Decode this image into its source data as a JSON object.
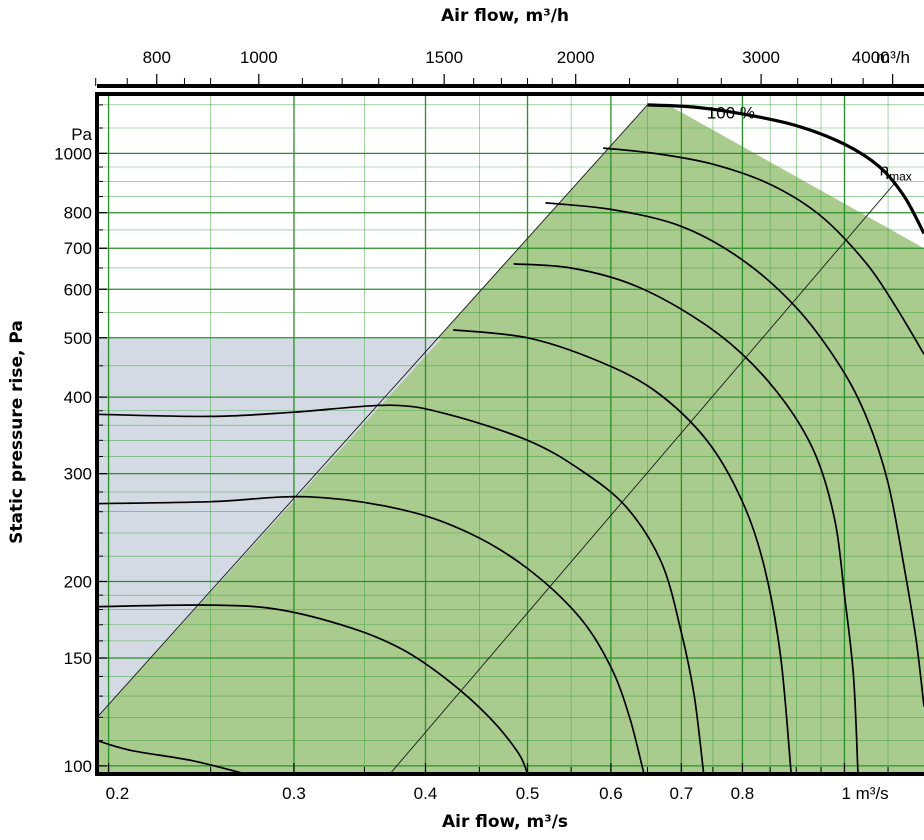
{
  "chart_data": {
    "type": "line",
    "x_axis_bottom": {
      "label": "Air flow, m³/s",
      "scale": "log",
      "range": [
        0.195,
        1.19
      ],
      "ticks": [
        {
          "value": 0.2,
          "label": "0.2"
        },
        {
          "value": 0.3,
          "label": "0.3"
        },
        {
          "value": 0.4,
          "label": "0.4"
        },
        {
          "value": 0.5,
          "label": "0.5"
        },
        {
          "value": 0.6,
          "label": "0.6"
        },
        {
          "value": 0.7,
          "label": "0.7"
        },
        {
          "value": 0.8,
          "label": "0.8"
        },
        {
          "value": 1.0,
          "label": "1 m³/s"
        }
      ]
    },
    "x_axis_top": {
      "label": "Air flow, m³/h",
      "scale": "log",
      "ticks": [
        {
          "value": 800,
          "label": "800"
        },
        {
          "value": 1000,
          "label": "1000"
        },
        {
          "value": 1500,
          "label": "1500"
        },
        {
          "value": 2000,
          "label": "2000"
        },
        {
          "value": 3000,
          "label": "3000"
        },
        {
          "value": 4000,
          "label": "4000"
        }
      ],
      "unit_label": "m³/h"
    },
    "y_axis": {
      "label": "Static pressure rise, Pa",
      "unit_label": "Pa",
      "scale": "log",
      "range": [
        97,
        1250
      ],
      "ticks": [
        {
          "value": 100,
          "label": "100"
        },
        {
          "value": 150,
          "label": "150"
        },
        {
          "value": 200,
          "label": "200"
        },
        {
          "value": 300,
          "label": "300"
        },
        {
          "value": 400,
          "label": "400"
        },
        {
          "value": 500,
          "label": "500"
        },
        {
          "value": 600,
          "label": "600"
        },
        {
          "value": 700,
          "label": "700"
        },
        {
          "value": 800,
          "label": "800"
        },
        {
          "value": 1000,
          "label": "1000"
        }
      ]
    },
    "grid": true,
    "regions": [
      {
        "kind": "operating-area",
        "color": "#a9cc8e",
        "boundary": [
          [
            0.195,
            120
          ],
          [
            0.65,
            1200
          ],
          [
            0.68,
            1200
          ],
          [
            1.19,
            700
          ],
          [
            1.19,
            97
          ],
          [
            0.195,
            97
          ]
        ]
      },
      {
        "kind": "low-area",
        "color": "#d3dae3",
        "boundary": [
          [
            0.195,
            97
          ],
          [
            0.195,
            500
          ],
          [
            0.415,
            500
          ],
          [
            0.195,
            120
          ]
        ]
      }
    ],
    "series": [
      {
        "name": "100 %",
        "emphasis": "bold",
        "points": [
          [
            0.65,
            1200
          ],
          [
            0.72,
            1190
          ],
          [
            0.8,
            1160
          ],
          [
            0.9,
            1110
          ],
          [
            1.0,
            1035
          ],
          [
            1.08,
            950
          ],
          [
            1.14,
            850
          ],
          [
            1.19,
            740
          ]
        ]
      },
      {
        "points": [
          [
            0.59,
            1020
          ],
          [
            0.66,
            1000
          ],
          [
            0.75,
            960
          ],
          [
            0.85,
            890
          ],
          [
            0.95,
            790
          ],
          [
            1.05,
            660
          ],
          [
            1.12,
            560
          ],
          [
            1.19,
            470
          ]
        ]
      },
      {
        "points": [
          [
            0.52,
            830
          ],
          [
            0.6,
            810
          ],
          [
            0.7,
            760
          ],
          [
            0.8,
            670
          ],
          [
            0.9,
            560
          ],
          [
            0.99,
            450
          ],
          [
            1.05,
            370
          ],
          [
            1.1,
            290
          ],
          [
            1.14,
            210
          ],
          [
            1.17,
            160
          ],
          [
            1.19,
            125
          ]
        ]
      },
      {
        "points": [
          [
            0.485,
            660
          ],
          [
            0.55,
            650
          ],
          [
            0.63,
            610
          ],
          [
            0.72,
            540
          ],
          [
            0.8,
            470
          ],
          [
            0.88,
            390
          ],
          [
            0.94,
            320
          ],
          [
            0.98,
            250
          ],
          [
            1.0,
            190
          ],
          [
            1.02,
            140
          ],
          [
            1.03,
            97
          ]
        ]
      },
      {
        "points": [
          [
            0.425,
            515
          ],
          [
            0.5,
            500
          ],
          [
            0.58,
            460
          ],
          [
            0.66,
            410
          ],
          [
            0.74,
            340
          ],
          [
            0.8,
            270
          ],
          [
            0.84,
            210
          ],
          [
            0.87,
            150
          ],
          [
            0.89,
            97
          ]
        ]
      },
      {
        "points": [
          [
            0.195,
            375
          ],
          [
            0.25,
            372
          ],
          [
            0.3,
            378
          ],
          [
            0.37,
            388
          ],
          [
            0.42,
            375
          ],
          [
            0.5,
            340
          ],
          [
            0.56,
            305
          ],
          [
            0.62,
            265
          ],
          [
            0.67,
            215
          ],
          [
            0.7,
            165
          ],
          [
            0.72,
            130
          ],
          [
            0.735,
            97
          ]
        ]
      },
      {
        "points": [
          [
            0.195,
            268
          ],
          [
            0.25,
            270
          ],
          [
            0.31,
            275
          ],
          [
            0.38,
            262
          ],
          [
            0.44,
            240
          ],
          [
            0.5,
            210
          ],
          [
            0.56,
            175
          ],
          [
            0.6,
            145
          ],
          [
            0.625,
            120
          ],
          [
            0.645,
            97
          ]
        ]
      },
      {
        "points": [
          [
            0.195,
            182
          ],
          [
            0.25,
            183
          ],
          [
            0.29,
            180
          ],
          [
            0.34,
            168
          ],
          [
            0.38,
            155
          ],
          [
            0.42,
            138
          ],
          [
            0.46,
            120
          ],
          [
            0.49,
            105
          ],
          [
            0.5,
            97
          ]
        ]
      },
      {
        "points": [
          [
            0.195,
            110
          ],
          [
            0.21,
            106
          ],
          [
            0.24,
            102
          ],
          [
            0.27,
            97
          ]
        ]
      }
    ],
    "system_line": {
      "name": "η",
      "subscript": "max",
      "points": [
        [
          0.37,
          97
        ],
        [
          1.12,
          900
        ]
      ]
    },
    "annotations": [
      {
        "text": "100 %",
        "at": [
          0.74,
          1140
        ]
      },
      {
        "text": "η",
        "subscript": "max",
        "at": [
          1.08,
          920
        ]
      }
    ]
  }
}
